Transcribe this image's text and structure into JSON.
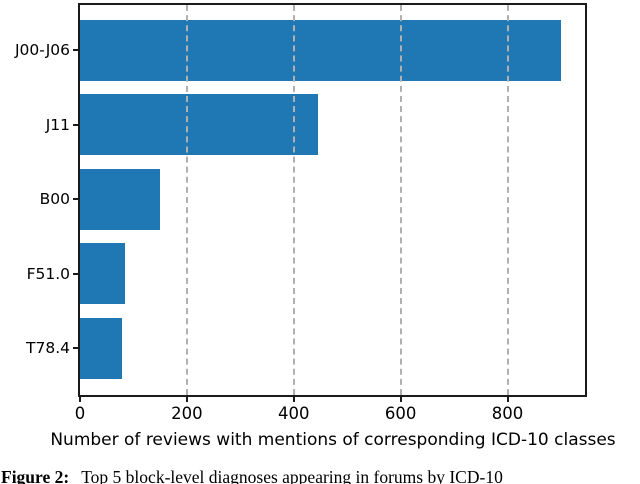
{
  "chart_data": {
    "type": "bar",
    "orientation": "horizontal",
    "title": "",
    "xlabel": "Number of reviews with mentions of corresponding ICD-10 classes",
    "ylabel": "",
    "categories": [
      "J00-J06",
      "J11",
      "B00",
      "F51.0",
      "T78.4"
    ],
    "values": [
      900,
      445,
      150,
      85,
      78
    ],
    "xlim": [
      0,
      945
    ],
    "xticks": [
      0,
      200,
      400,
      600,
      800
    ],
    "xtick_labels": [
      "0",
      "200",
      "400",
      "600",
      "800"
    ],
    "grid": "vertical dashed gridlines at x ticks, drawn above bars",
    "legend_position": "none",
    "bar_color": "#1f77b4",
    "grid_color": "#b0b0b0",
    "axis_color": "#1a1a1a",
    "text_color": "#000000",
    "background": "#ffffff"
  },
  "caption": {
    "prefix": "Figure 2:",
    "text": "Top 5 block-level diagnoses appearing in forums by ICD-10"
  }
}
